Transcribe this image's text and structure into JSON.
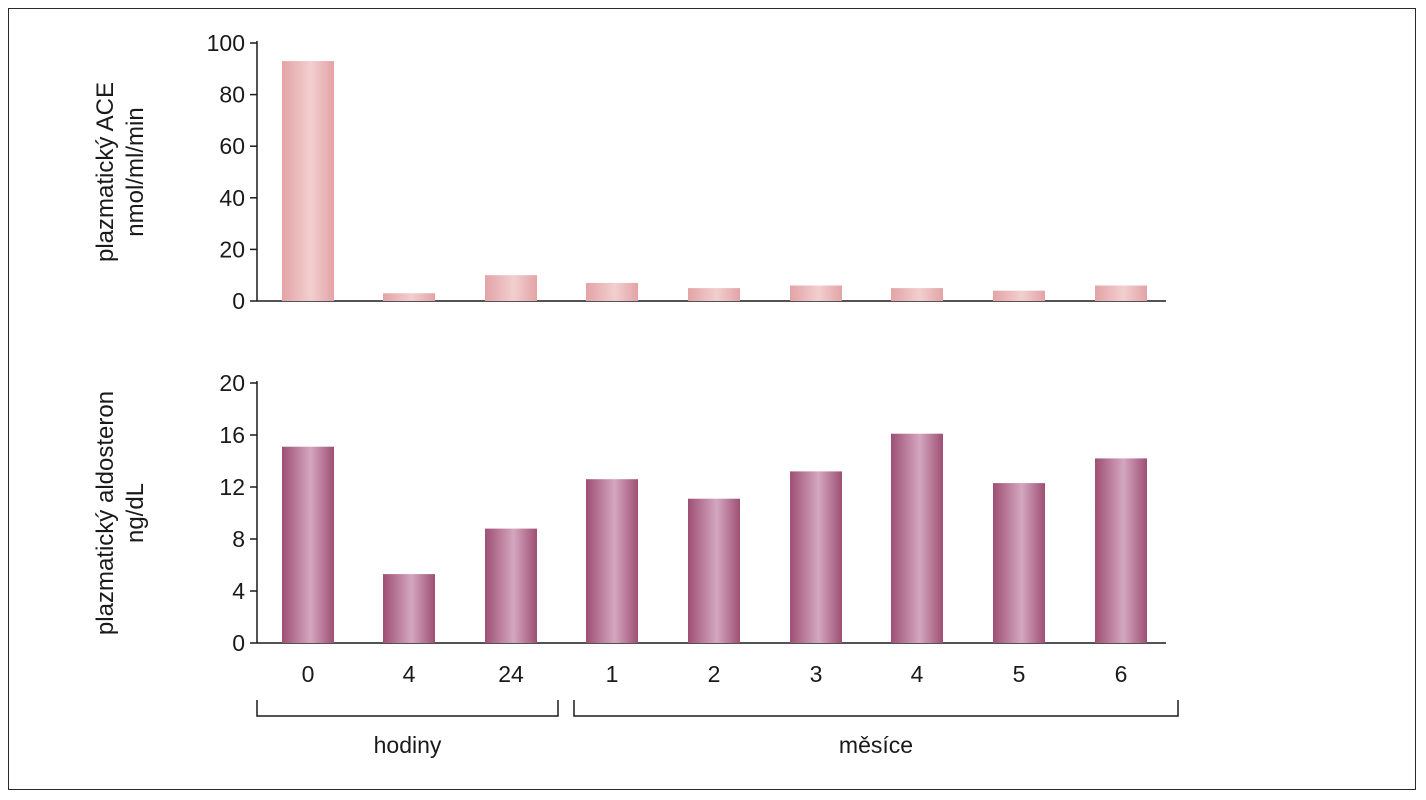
{
  "chart_data": [
    {
      "type": "bar",
      "ylabel_lines": [
        "plazmatický ACE",
        "nmol/ml/min"
      ],
      "ylim": [
        0,
        100
      ],
      "yticks": [
        0,
        20,
        40,
        60,
        80,
        100
      ],
      "categories": [
        "0",
        "4",
        "24",
        "1",
        "2",
        "3",
        "4",
        "5",
        "6"
      ],
      "values": [
        93,
        3,
        10,
        7,
        5,
        6,
        5,
        4,
        6
      ],
      "grid": false,
      "colors": {
        "light": "#f2cfcf",
        "dark": "#e3a3a6"
      }
    },
    {
      "type": "bar",
      "ylabel_lines": [
        "plazmatický aldosteron",
        "ng/dL"
      ],
      "ylim": [
        0,
        20
      ],
      "yticks": [
        0,
        4,
        8,
        12,
        16,
        20
      ],
      "categories": [
        "0",
        "4",
        "24",
        "1",
        "2",
        "3",
        "4",
        "5",
        "6"
      ],
      "values": [
        15.1,
        5.3,
        8.8,
        12.6,
        11.1,
        13.2,
        16.1,
        12.3,
        14.2
      ],
      "xtick_labels": [
        "0",
        "4",
        "24",
        "1",
        "2",
        "3",
        "4",
        "5",
        "6"
      ],
      "grid": false,
      "colors": {
        "light": "#d4a7bf",
        "dark": "#9e4f73"
      }
    }
  ],
  "groups": [
    {
      "label": "hodiny",
      "count": 3
    },
    {
      "label": "měsíce",
      "count": 6
    }
  ]
}
